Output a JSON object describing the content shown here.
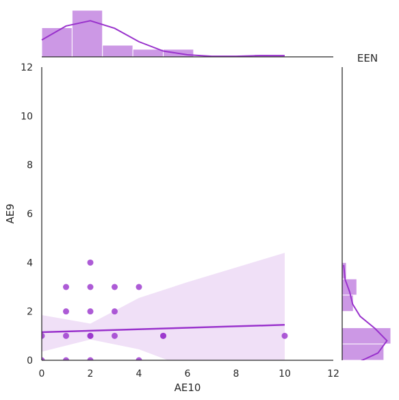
{
  "chart_data": {
    "type": "scatter",
    "title": "EEN",
    "xlabel": "AE10",
    "ylabel": "AE9",
    "xlim": [
      0,
      12
    ],
    "ylim": [
      0,
      12
    ],
    "xticks": [
      "0",
      "2",
      "4",
      "6",
      "8",
      "10",
      "12"
    ],
    "yticks": [
      "0",
      "2",
      "4",
      "6",
      "8",
      "10",
      "12"
    ],
    "grid": false,
    "color": "#9932cc",
    "points": [
      {
        "x": 0,
        "y": 1
      },
      {
        "x": 0,
        "y": 0
      },
      {
        "x": 1,
        "y": 0
      },
      {
        "x": 1,
        "y": 1
      },
      {
        "x": 1,
        "y": 2
      },
      {
        "x": 1,
        "y": 3
      },
      {
        "x": 2,
        "y": 0
      },
      {
        "x": 2,
        "y": 1
      },
      {
        "x": 2,
        "y": 1
      },
      {
        "x": 2,
        "y": 2
      },
      {
        "x": 2,
        "y": 3
      },
      {
        "x": 2,
        "y": 4
      },
      {
        "x": 3,
        "y": 1
      },
      {
        "x": 3,
        "y": 2
      },
      {
        "x": 3,
        "y": 3
      },
      {
        "x": 4,
        "y": 0
      },
      {
        "x": 4,
        "y": 3
      },
      {
        "x": 5,
        "y": 1
      },
      {
        "x": 5,
        "y": 1
      },
      {
        "x": 10,
        "y": 1
      }
    ],
    "regression": {
      "x": [
        0,
        10
      ],
      "y": [
        1.15,
        1.45
      ],
      "ci_upper": [
        {
          "x": 0,
          "y": 1.85
        },
        {
          "x": 2,
          "y": 1.5
        },
        {
          "x": 4,
          "y": 2.55
        },
        {
          "x": 6,
          "y": 3.2
        },
        {
          "x": 8,
          "y": 3.8
        },
        {
          "x": 10,
          "y": 4.4
        }
      ],
      "ci_lower": [
        {
          "x": 0,
          "y": 0.35
        },
        {
          "x": 2,
          "y": 0.85
        },
        {
          "x": 4,
          "y": 0.45
        },
        {
          "x": 6,
          "y": -0.3
        },
        {
          "x": 8,
          "y": -1.0
        },
        {
          "x": 10,
          "y": -1.6
        }
      ]
    },
    "marginal_x": {
      "bins": [
        {
          "start": 0,
          "end": 1.25,
          "count": 5
        },
        {
          "start": 1.25,
          "end": 2.5,
          "count": 8
        },
        {
          "start": 2.5,
          "end": 3.75,
          "count": 2
        },
        {
          "start": 3.75,
          "end": 5,
          "count": 1.3
        },
        {
          "start": 5,
          "end": 6.25,
          "count": 1.3
        },
        {
          "start": 8.75,
          "end": 10,
          "count": 0.4
        }
      ],
      "kde": [
        {
          "x": 0,
          "y": 2.9
        },
        {
          "x": 1,
          "y": 5.3
        },
        {
          "x": 2,
          "y": 6.2
        },
        {
          "x": 3,
          "y": 4.9
        },
        {
          "x": 4,
          "y": 2.6
        },
        {
          "x": 5,
          "y": 1.0
        },
        {
          "x": 6,
          "y": 0.35
        },
        {
          "x": 7,
          "y": 0.1
        },
        {
          "x": 8,
          "y": 0.1
        },
        {
          "x": 9,
          "y": 0.22
        },
        {
          "x": 10,
          "y": 0.2
        }
      ]
    },
    "marginal_y": {
      "bins": [
        {
          "start": 0,
          "end": 0.67,
          "count": 6
        },
        {
          "start": 0.67,
          "end": 1.33,
          "count": 7
        },
        {
          "start": 2,
          "end": 2.67,
          "count": 1.6
        },
        {
          "start": 2.67,
          "end": 3.33,
          "count": 2.1
        },
        {
          "start": 3.33,
          "end": 4,
          "count": 0.6
        }
      ],
      "kde": [
        {
          "y": -0.1,
          "x": 0.5
        },
        {
          "y": 0.3,
          "x": 1.2
        },
        {
          "y": 0.8,
          "x": 1.5
        },
        {
          "y": 1.3,
          "x": 1.1
        },
        {
          "y": 1.8,
          "x": 0.6
        },
        {
          "y": 2.3,
          "x": 0.35
        },
        {
          "y": 2.8,
          "x": 0.25
        },
        {
          "y": 3.3,
          "x": 0.1
        },
        {
          "y": 3.9,
          "x": 0.05
        }
      ]
    }
  }
}
